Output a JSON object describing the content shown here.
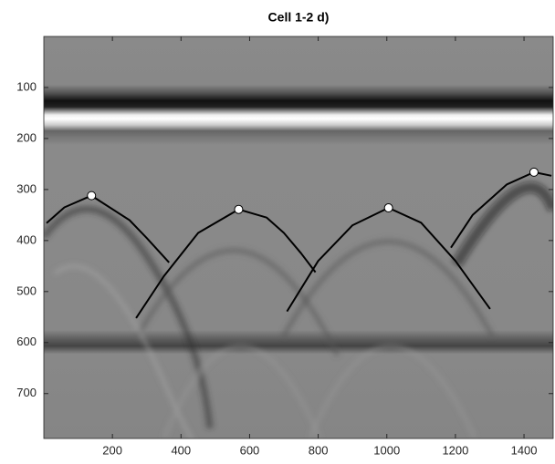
{
  "chart_data": {
    "type": "radargram",
    "title": "Cell 1-2 d)",
    "xlim": [
      0,
      1485
    ],
    "ylim": [
      0,
      788
    ],
    "y_reversed": true,
    "xticks": [
      200,
      400,
      600,
      800,
      1000,
      1200,
      1400
    ],
    "yticks": [
      100,
      200,
      300,
      400,
      500,
      600,
      700
    ],
    "series": [
      {
        "kind": "line",
        "color": "#000000",
        "x": [
          8,
          60,
          139,
          250,
          300,
          365
        ],
        "y": [
          366,
          335,
          312,
          360,
          395,
          443
        ]
      },
      {
        "kind": "line",
        "color": "#000000",
        "x": [
          269,
          350,
          450,
          568,
          650,
          700,
          750,
          792
        ],
        "y": [
          552,
          470,
          385,
          339,
          355,
          385,
          425,
          462
        ]
      },
      {
        "kind": "line",
        "color": "#000000",
        "x": [
          709,
          800,
          900,
          1005,
          1100,
          1200,
          1301
        ],
        "y": [
          539,
          440,
          370,
          336,
          365,
          440,
          534
        ]
      },
      {
        "kind": "line",
        "color": "#000000",
        "x": [
          1187,
          1250,
          1350,
          1429,
          1480
        ],
        "y": [
          414,
          350,
          290,
          266,
          273
        ]
      },
      {
        "kind": "points",
        "color": "#ffffff",
        "x": [
          139,
          568,
          1005,
          1429
        ],
        "y": [
          312,
          339,
          336,
          266
        ]
      }
    ]
  }
}
